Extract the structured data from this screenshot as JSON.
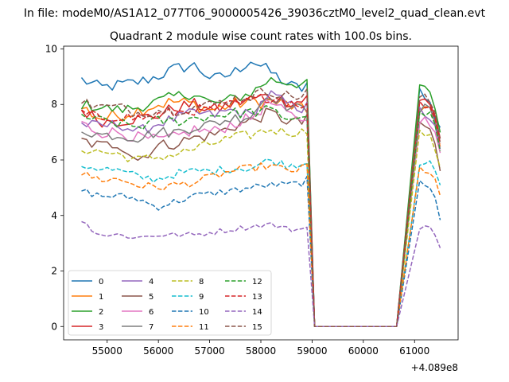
{
  "figure": {
    "suptitle": "In file: modeM0/AS1A12_077T06_9000005426_39036cztM0_level2_quad_clean.evt"
  },
  "chart_data": {
    "type": "line",
    "title": "Quadrant 2 module wise count rates with 100.0s bins.",
    "xlabel": "",
    "ylabel": "",
    "x_offset_label": "+4.089e8",
    "xlim": [
      54150,
      61850
    ],
    "ylim": [
      -0.48,
      10.1
    ],
    "xticks": [
      55000,
      56000,
      57000,
      58000,
      59000,
      60000,
      61000
    ],
    "xtick_labels": [
      "55000",
      "56000",
      "57000",
      "58000",
      "59000",
      "60000",
      "61000"
    ],
    "yticks": [
      0,
      2,
      4,
      6,
      8,
      10
    ],
    "ytick_labels": [
      "0",
      "2",
      "4",
      "6",
      "8",
      "10"
    ],
    "grid": false,
    "legend": {
      "placement": "lower-left",
      "columns": 4
    },
    "segments": [
      {
        "start": 54500,
        "step": 100,
        "count": 45
      },
      {
        "start": 61100,
        "step": 100,
        "count": 5
      }
    ],
    "gap": {
      "x": [
        59050,
        59150,
        60550,
        60650
      ],
      "value": 0
    },
    "series": [
      {
        "name": "0",
        "color": "#1f77b4",
        "style": "solid",
        "base": [
          8.9,
          8.6,
          8.7,
          8.8,
          9.0,
          9.3,
          9.4,
          8.9,
          9.1,
          9.6,
          9.2,
          8.7,
          8.5,
          8.3,
          7.8,
          7.1
        ],
        "noise": 0.22
      },
      {
        "name": "1",
        "color": "#ff7f0e",
        "style": "solid",
        "base": [
          7.9,
          7.5,
          7.6,
          7.8,
          8.0,
          8.1,
          8.0,
          7.8,
          8.0,
          8.1,
          8.1,
          8.0,
          7.7,
          7.9,
          7.6,
          6.4
        ],
        "noise": 0.25
      },
      {
        "name": "2",
        "color": "#2ca02c",
        "style": "solid",
        "base": [
          8.0,
          7.9,
          7.8,
          7.9,
          8.1,
          8.3,
          8.4,
          8.0,
          8.2,
          8.4,
          8.9,
          8.8,
          8.7,
          8.5,
          8.2,
          7.0
        ],
        "noise": 0.2
      },
      {
        "name": "3",
        "color": "#d62728",
        "style": "solid",
        "base": [
          7.8,
          7.4,
          7.4,
          7.5,
          7.6,
          7.9,
          8.0,
          7.8,
          8.0,
          8.2,
          8.3,
          8.1,
          8.1,
          8.2,
          7.9,
          6.8
        ],
        "noise": 0.22
      },
      {
        "name": "4",
        "color": "#9467bd",
        "style": "solid",
        "base": [
          7.3,
          7.2,
          7.3,
          7.0,
          7.3,
          7.5,
          7.7,
          7.6,
          7.8,
          7.6,
          8.4,
          8.0,
          7.8,
          7.6,
          7.4,
          6.3
        ],
        "noise": 0.2
      },
      {
        "name": "5",
        "color": "#8c564b",
        "style": "solid",
        "base": [
          6.7,
          6.5,
          6.6,
          6.0,
          6.5,
          6.6,
          6.8,
          6.9,
          7.2,
          7.4,
          7.7,
          7.4,
          7.3,
          7.2,
          6.9,
          5.6
        ],
        "noise": 0.22
      },
      {
        "name": "6",
        "color": "#e377c2",
        "style": "solid",
        "base": [
          7.3,
          7.0,
          7.0,
          6.8,
          6.7,
          6.8,
          7.1,
          7.0,
          7.3,
          7.5,
          8.1,
          7.6,
          7.5,
          7.4,
          7.1,
          6.2
        ],
        "noise": 0.22
      },
      {
        "name": "7",
        "color": "#7f7f7f",
        "style": "solid",
        "base": [
          7.1,
          6.9,
          6.9,
          6.8,
          7.0,
          7.0,
          7.2,
          7.3,
          7.5,
          7.6,
          8.4,
          7.9,
          7.8,
          7.9,
          7.7,
          6.5
        ],
        "noise": 0.2
      },
      {
        "name": "8",
        "color": "#bcbd22",
        "style": "dashed",
        "base": [
          6.4,
          6.3,
          6.2,
          6.0,
          6.1,
          6.2,
          6.4,
          6.6,
          6.8,
          6.9,
          7.1,
          7.0,
          7.0,
          6.9,
          6.7,
          5.6
        ],
        "noise": 0.18
      },
      {
        "name": "9",
        "color": "#17becf",
        "style": "dashed",
        "base": [
          5.8,
          5.7,
          5.6,
          5.4,
          5.3,
          5.5,
          5.6,
          5.6,
          5.7,
          5.7,
          6.0,
          5.8,
          5.9,
          5.9,
          5.8,
          5.0
        ],
        "noise": 0.15
      },
      {
        "name": "10",
        "color": "#1f77b4",
        "style": "dashed",
        "base": [
          4.9,
          4.7,
          4.7,
          4.6,
          4.3,
          4.5,
          4.7,
          4.8,
          4.9,
          5.0,
          5.1,
          5.1,
          5.2,
          5.1,
          5.0,
          3.9
        ],
        "noise": 0.13
      },
      {
        "name": "11",
        "color": "#ff7f0e",
        "style": "dashed",
        "base": [
          5.5,
          5.3,
          5.3,
          5.1,
          5.0,
          5.1,
          5.2,
          5.4,
          5.6,
          5.7,
          5.8,
          5.6,
          5.7,
          5.6,
          5.5,
          4.6
        ],
        "noise": 0.15
      },
      {
        "name": "12",
        "color": "#2ca02c",
        "style": "dashed",
        "base": [
          7.6,
          7.4,
          7.3,
          7.2,
          7.4,
          7.4,
          7.5,
          7.6,
          7.7,
          7.7,
          7.8,
          7.5,
          7.6,
          7.7,
          7.5,
          6.3
        ],
        "noise": 0.2
      },
      {
        "name": "13",
        "color": "#d62728",
        "style": "dashed",
        "base": [
          7.7,
          7.5,
          7.6,
          7.5,
          7.6,
          7.7,
          7.8,
          7.8,
          8.0,
          8.1,
          8.3,
          8.1,
          8.0,
          8.0,
          7.8,
          6.7
        ],
        "noise": 0.2
      },
      {
        "name": "14",
        "color": "#9467bd",
        "style": "dashed",
        "base": [
          3.8,
          3.3,
          3.3,
          3.2,
          3.3,
          3.3,
          3.3,
          3.4,
          3.5,
          3.6,
          3.7,
          3.5,
          3.5,
          3.6,
          3.5,
          2.9
        ],
        "noise": 0.1
      },
      {
        "name": "15",
        "color": "#8c564b",
        "style": "dashed",
        "base": [
          8.1,
          7.9,
          7.9,
          7.7,
          7.8,
          7.8,
          7.9,
          8.0,
          8.2,
          8.3,
          8.5,
          8.3,
          8.3,
          8.2,
          8.0,
          6.8
        ],
        "noise": 0.2
      }
    ]
  }
}
